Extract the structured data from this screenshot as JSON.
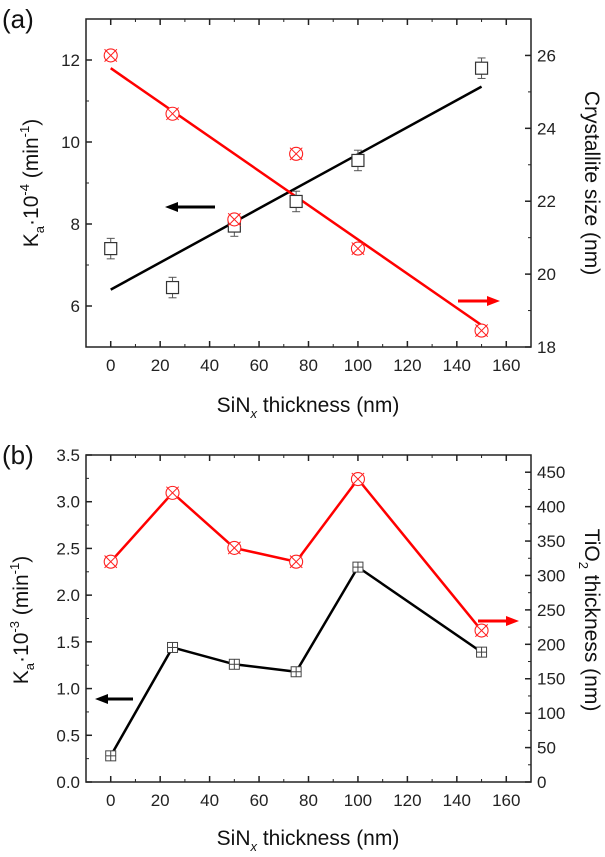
{
  "chart_data": [
    {
      "panel_label": "(a)",
      "type": "scatter",
      "xlabel": {
        "main": "SiN",
        "sub": "x",
        "rest": " thickness (nm)"
      },
      "ylabel_left": {
        "k": "K",
        "k_sub": "a",
        "mid": "·10",
        "exp": "-4",
        "unit": " (min",
        "unit_exp": "-1",
        "close": ")"
      },
      "ylabel_right": "Crystallite size (nm)",
      "xlim": [
        -10,
        170
      ],
      "ylim_left": [
        5.0,
        13.0
      ],
      "ylim_right": [
        18.0,
        27.0
      ],
      "xticks": [
        0,
        20,
        40,
        60,
        80,
        100,
        120,
        140,
        160
      ],
      "yticks_left": [
        6,
        8,
        10,
        12
      ],
      "yticks_right": [
        18,
        20,
        22,
        24,
        26
      ],
      "grid": false,
      "series": [
        {
          "name": "K_a",
          "axis": "left",
          "color": "#000000",
          "marker": "open-square-errorbar",
          "x": [
            0,
            25,
            50,
            75,
            100,
            150
          ],
          "y": [
            7.4,
            6.45,
            7.95,
            8.55,
            9.55,
            11.8
          ],
          "err": [
            0.25,
            0.25,
            0.25,
            0.25,
            0.25,
            0.25
          ],
          "fit": {
            "x": [
              0,
              150
            ],
            "y": [
              6.4,
              11.35
            ]
          },
          "arrow": "left"
        },
        {
          "name": "Crystallite size",
          "axis": "right",
          "color": "#ff0000",
          "marker": "circle-x",
          "x": [
            0,
            25,
            50,
            75,
            100,
            150
          ],
          "y": [
            26.0,
            24.4,
            21.5,
            23.3,
            20.7,
            18.45
          ],
          "fit": {
            "x": [
              0,
              150
            ],
            "y": [
              25.65,
              18.6
            ]
          },
          "arrow": "right"
        }
      ]
    },
    {
      "panel_label": "(b)",
      "type": "line",
      "xlabel": {
        "main": "SiN",
        "sub": "x",
        "rest": " thickness (nm)"
      },
      "ylabel_left": {
        "k": "K",
        "k_sub": "a",
        "mid": "·10",
        "exp": "-3",
        "unit": " (min",
        "unit_exp": "-1",
        "close": ")"
      },
      "ylabel_right": {
        "main": "TiO",
        "sub": "2",
        "rest": " thickness (nm)"
      },
      "xlim": [
        -10,
        170
      ],
      "ylim_left": [
        0.0,
        3.5
      ],
      "ylim_right": [
        0,
        475
      ],
      "xticks": [
        0,
        20,
        40,
        60,
        80,
        100,
        120,
        140,
        160
      ],
      "yticks_left": [
        "0.0",
        "0.5",
        "1.0",
        "1.5",
        "2.0",
        "2.5",
        "3.0",
        "3.5"
      ],
      "yticks_right": [
        0,
        50,
        100,
        150,
        200,
        250,
        300,
        350,
        400,
        450
      ],
      "grid": false,
      "series": [
        {
          "name": "K_a",
          "axis": "left",
          "color": "#000000",
          "marker": "square-plus",
          "x": [
            0,
            25,
            50,
            75,
            100,
            150
          ],
          "y": [
            0.28,
            1.44,
            1.26,
            1.18,
            2.3,
            1.39
          ],
          "arrow": "left"
        },
        {
          "name": "TiO2 thickness",
          "axis": "right",
          "color": "#ff0000",
          "marker": "circle-x",
          "x": [
            0,
            25,
            50,
            75,
            100,
            150
          ],
          "y": [
            320,
            420,
            340,
            320,
            440,
            220
          ],
          "arrow": "right"
        }
      ]
    }
  ]
}
